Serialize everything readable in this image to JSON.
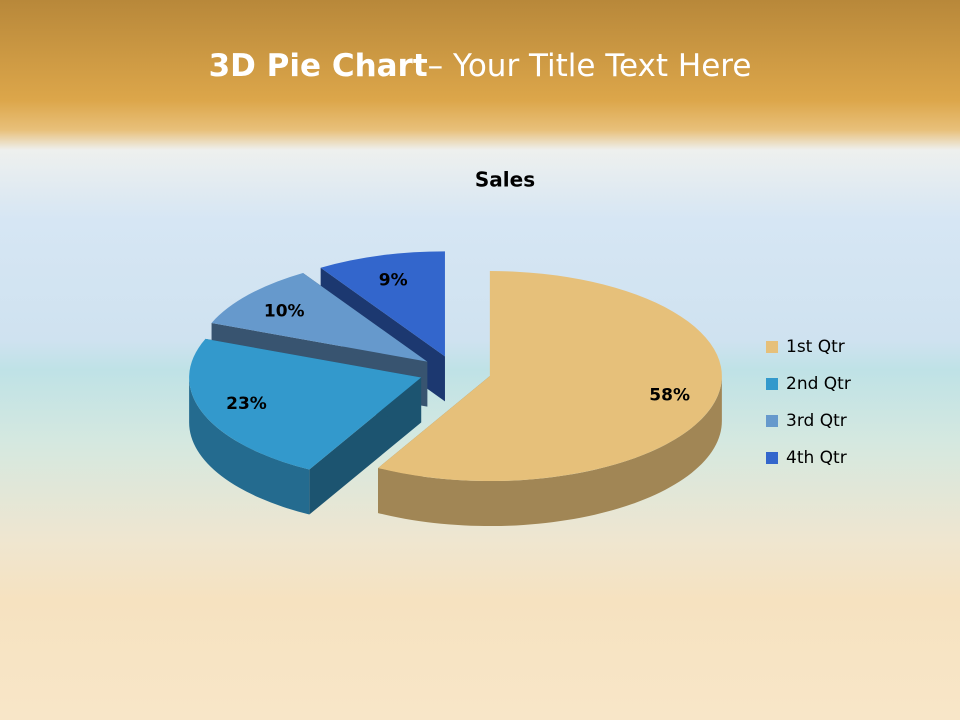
{
  "slide": {
    "title_bold": "3D Pie Chart",
    "title_rest": "– Your Title Text Here"
  },
  "chart_data": {
    "type": "pie3d",
    "title": "Sales",
    "categories": [
      "1st Qtr",
      "2nd Qtr",
      "3rd Qtr",
      "4th Qtr"
    ],
    "values": [
      58,
      23,
      10,
      9
    ],
    "value_labels": [
      "58%",
      "23%",
      "10%",
      "9%"
    ],
    "colors": [
      "#e6c07a",
      "#3399cc",
      "#6699cc",
      "#3366cc"
    ],
    "legend": "right"
  }
}
